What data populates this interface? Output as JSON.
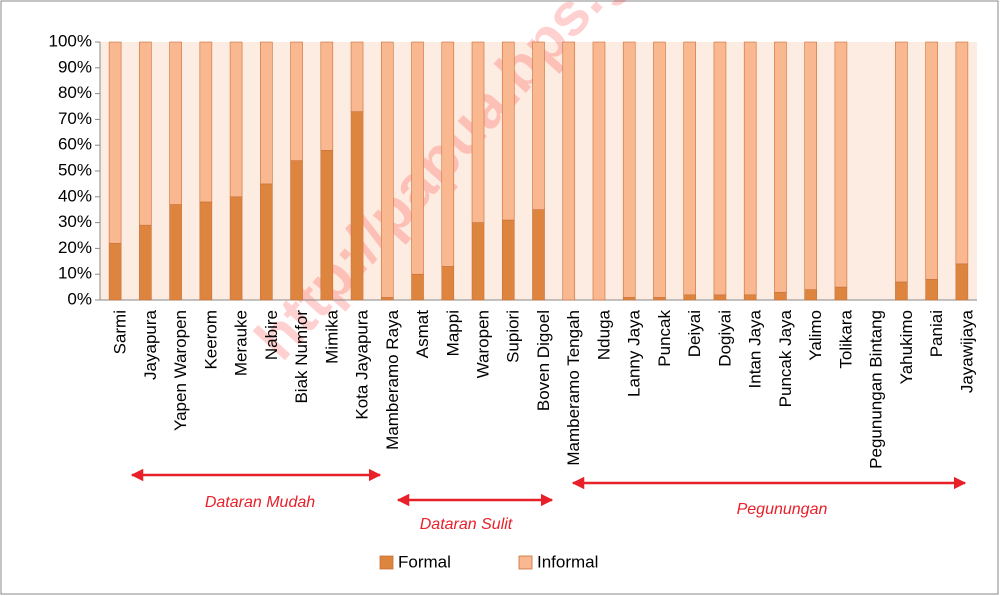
{
  "chart_data": {
    "type": "stacked_bar",
    "watermark": "http://papua.bps.go.id",
    "categories": [
      "Sarmi",
      "Jayapura",
      "Yapen Waropen",
      "Keerom",
      "Merauke",
      "Nabire",
      "Biak Numfor",
      "Mimika",
      "Kota Jayapura",
      "Mamberamo Raya",
      "Asmat",
      "Mappi",
      "Waropen",
      "Supiori",
      "Boven Digoel",
      "Mamberamo Tengah",
      "Nduga",
      "Lanny Jaya",
      "Puncak",
      "Deiyai",
      "Dogiyai",
      "Intan Jaya",
      "Puncak Jaya",
      "Yalimo",
      "Tolikara",
      "Pegunungan Bintang",
      "Yahukimo",
      "Paniai",
      "Jayawijaya"
    ],
    "series": [
      {
        "name": "Formal",
        "color": "#dd853f",
        "values": [
          22,
          29,
          37,
          38,
          40,
          45,
          54,
          58,
          73,
          1,
          10,
          13,
          30,
          31,
          35,
          0,
          0,
          1,
          1,
          2,
          2,
          2,
          3,
          4,
          5,
          null,
          7,
          8,
          14
        ]
      },
      {
        "name": "Informal",
        "color": "#f9b88f",
        "values": [
          78,
          71,
          63,
          62,
          60,
          55,
          46,
          42,
          27,
          99,
          90,
          87,
          70,
          69,
          65,
          100,
          100,
          99,
          99,
          98,
          98,
          98,
          97,
          96,
          95,
          null,
          93,
          92,
          86
        ]
      }
    ],
    "ylim": [
      0,
      100
    ],
    "yticks": [
      {
        "value": 0,
        "label": "0%"
      },
      {
        "value": 10,
        "label": "10%"
      },
      {
        "value": 20,
        "label": "20%"
      },
      {
        "value": 30,
        "label": "30%"
      },
      {
        "value": 40,
        "label": "40%"
      },
      {
        "value": 50,
        "label": "50%"
      },
      {
        "value": 60,
        "label": "60%"
      },
      {
        "value": 70,
        "label": "70%"
      },
      {
        "value": 80,
        "label": "80%"
      },
      {
        "value": 90,
        "label": "90%"
      },
      {
        "value": 100,
        "label": "100%"
      }
    ],
    "annotations": [
      "Dataran Mudah",
      "Dataran Sulit",
      "Pegunungan"
    ],
    "legend": "bottom"
  }
}
